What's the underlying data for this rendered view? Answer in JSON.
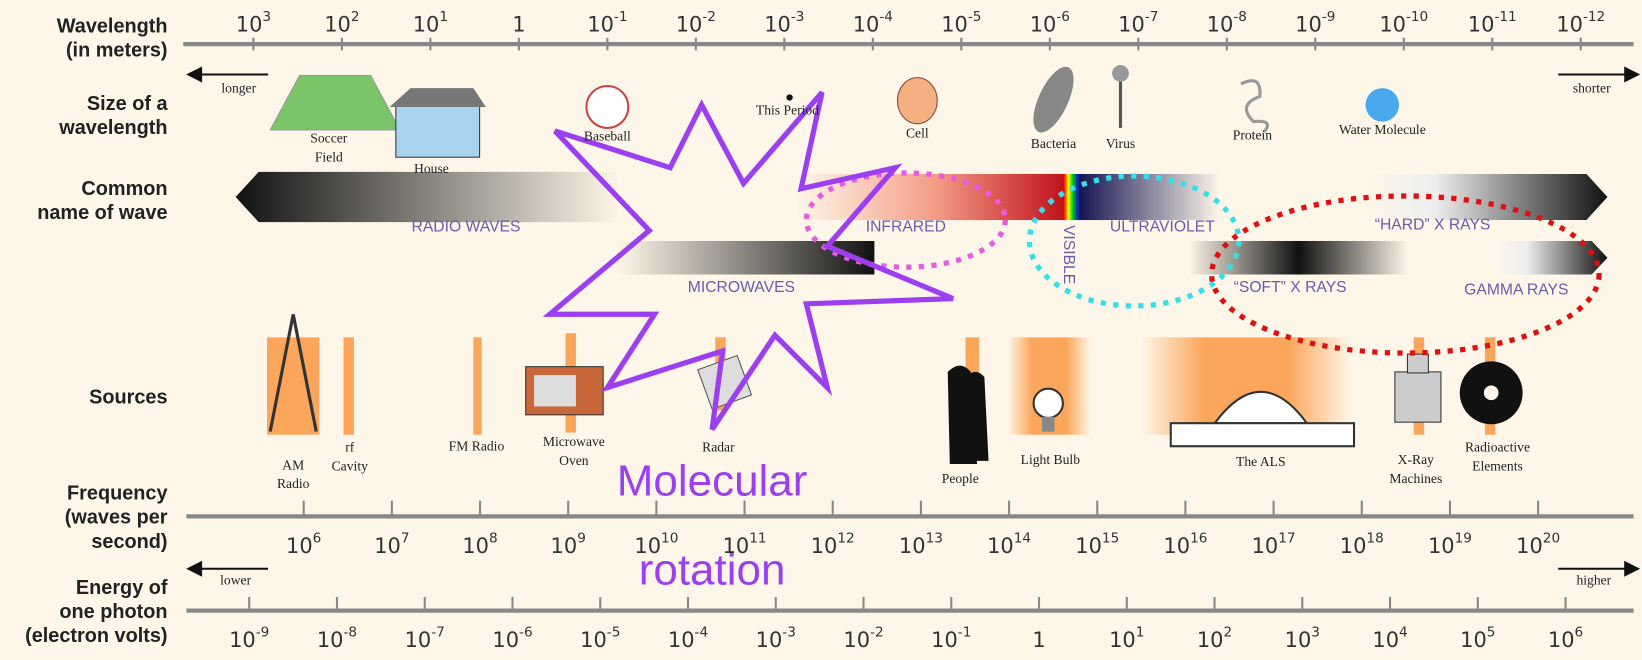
{
  "row_labels": [
    [
      "Wavelength",
      "(in meters)"
    ],
    [
      "Size of a",
      "wavelength"
    ],
    [
      "Common",
      "name of wave"
    ],
    [
      "Sources"
    ],
    [
      "Frequency",
      "(waves per",
      "second)"
    ],
    [
      "Energy of",
      "one photon",
      "(electron volts)"
    ]
  ],
  "wavelength_ticks": [
    {
      "base": "10",
      "exp": "3"
    },
    {
      "base": "10",
      "exp": "2"
    },
    {
      "base": "10",
      "exp": "1"
    },
    {
      "base": "1"
    },
    {
      "base": "10",
      "exp": "-1"
    },
    {
      "base": "10",
      "exp": "-2"
    },
    {
      "base": "10",
      "exp": "-3"
    },
    {
      "base": "10",
      "exp": "-4"
    },
    {
      "base": "10",
      "exp": "-5"
    },
    {
      "base": "10",
      "exp": "-6"
    },
    {
      "base": "10",
      "exp": "-7"
    },
    {
      "base": "10",
      "exp": "-8"
    },
    {
      "base": "10",
      "exp": "-9"
    },
    {
      "base": "10",
      "exp": "-10"
    },
    {
      "base": "10",
      "exp": "-11"
    },
    {
      "base": "10",
      "exp": "-12"
    }
  ],
  "frequency_ticks": [
    {
      "base": "10",
      "exp": "6"
    },
    {
      "base": "10",
      "exp": "7"
    },
    {
      "base": "10",
      "exp": "8"
    },
    {
      "base": "10",
      "exp": "9"
    },
    {
      "base": "10",
      "exp": "10"
    },
    {
      "base": "10",
      "exp": "11"
    },
    {
      "base": "10",
      "exp": "12"
    },
    {
      "base": "10",
      "exp": "13"
    },
    {
      "base": "10",
      "exp": "14"
    },
    {
      "base": "10",
      "exp": "15"
    },
    {
      "base": "10",
      "exp": "16"
    },
    {
      "base": "10",
      "exp": "17"
    },
    {
      "base": "10",
      "exp": "18"
    },
    {
      "base": "10",
      "exp": "19"
    },
    {
      "base": "10",
      "exp": "20"
    }
  ],
  "energy_ticks": [
    {
      "base": "10",
      "exp": "-9"
    },
    {
      "base": "10",
      "exp": "-8"
    },
    {
      "base": "10",
      "exp": "-7"
    },
    {
      "base": "10",
      "exp": "-6"
    },
    {
      "base": "10",
      "exp": "-5"
    },
    {
      "base": "10",
      "exp": "-4"
    },
    {
      "base": "10",
      "exp": "-3"
    },
    {
      "base": "10",
      "exp": "-2"
    },
    {
      "base": "10",
      "exp": "-1"
    },
    {
      "base": "1"
    },
    {
      "base": "10",
      "exp": "1"
    },
    {
      "base": "10",
      "exp": "2"
    },
    {
      "base": "10",
      "exp": "3"
    },
    {
      "base": "10",
      "exp": "4"
    },
    {
      "base": "10",
      "exp": "5"
    },
    {
      "base": "10",
      "exp": "6"
    }
  ],
  "arrows": {
    "longer": "longer",
    "shorter": "shorter",
    "lower": "lower",
    "higher": "higher"
  },
  "sizes": [
    [
      "Soccer",
      "Field"
    ],
    [
      "House"
    ],
    [
      "Baseball"
    ],
    [
      "This Period"
    ],
    [
      "Cell"
    ],
    [
      "Bacteria"
    ],
    [
      "Virus"
    ],
    [
      "Protein"
    ],
    [
      "Water Molecule"
    ]
  ],
  "waves": [
    "RADIO WAVES",
    "INFRARED",
    "VISIBLE",
    "ULTRAVIOLET",
    "“HARD” X RAYS",
    "MICROWAVES",
    "“SOFT” X RAYS",
    "GAMMA RAYS"
  ],
  "sources": [
    [
      "AM",
      "Radio"
    ],
    [
      "rf",
      "Cavity"
    ],
    [
      "FM Radio"
    ],
    [
      "Microwave",
      "Oven"
    ],
    [
      "Radar"
    ],
    [
      "People"
    ],
    [
      "Light Bulb"
    ],
    [
      "The ALS"
    ],
    [
      "X-Ray",
      "Machines"
    ],
    [
      "Radioactive",
      "Elements"
    ]
  ],
  "annotation": [
    "Molecular",
    "rotation"
  ]
}
